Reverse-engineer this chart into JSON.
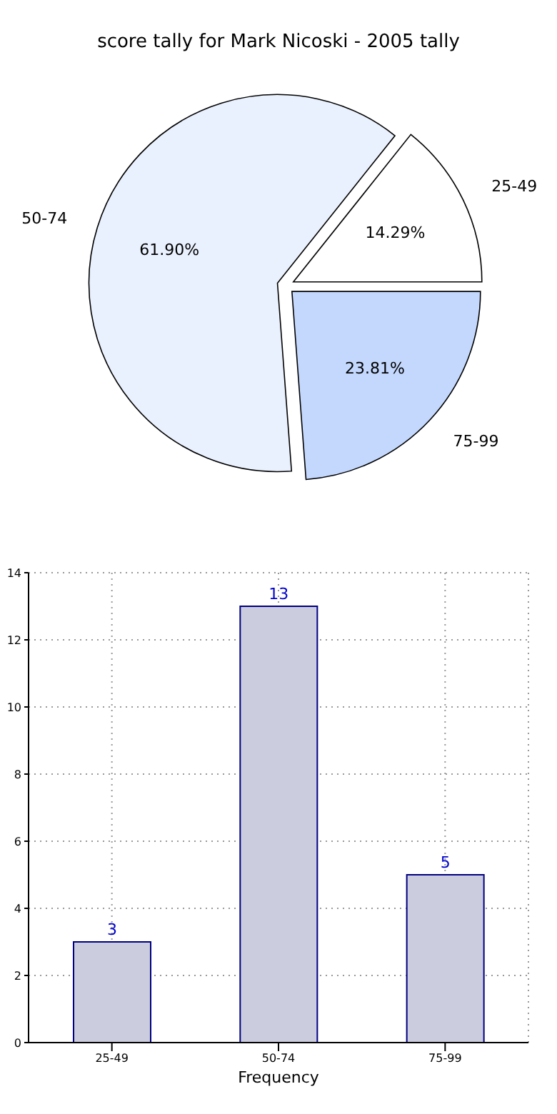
{
  "chart_data": [
    {
      "type": "pie",
      "title": "score tally for Mark Nicoski - 2005 tally",
      "categories": [
        "25-49",
        "50-74",
        "75-99"
      ],
      "values": [
        14.29,
        61.9,
        23.81
      ],
      "colors": [
        "#ffffff",
        "#eaf1fe",
        "#c4d8fe"
      ],
      "value_labels": [
        "14.29%",
        "61.90%",
        "23.81%"
      ]
    },
    {
      "type": "bar",
      "xlabel": "Frequency",
      "categories": [
        "25-49",
        "50-74",
        "75-99"
      ],
      "values": [
        3,
        13,
        5
      ],
      "color": "#ccccdf",
      "ylim": [
        0,
        14
      ],
      "yticks": [
        0,
        2,
        4,
        6,
        8,
        10,
        12,
        14
      ],
      "grid": true,
      "data_labels": true
    }
  ]
}
